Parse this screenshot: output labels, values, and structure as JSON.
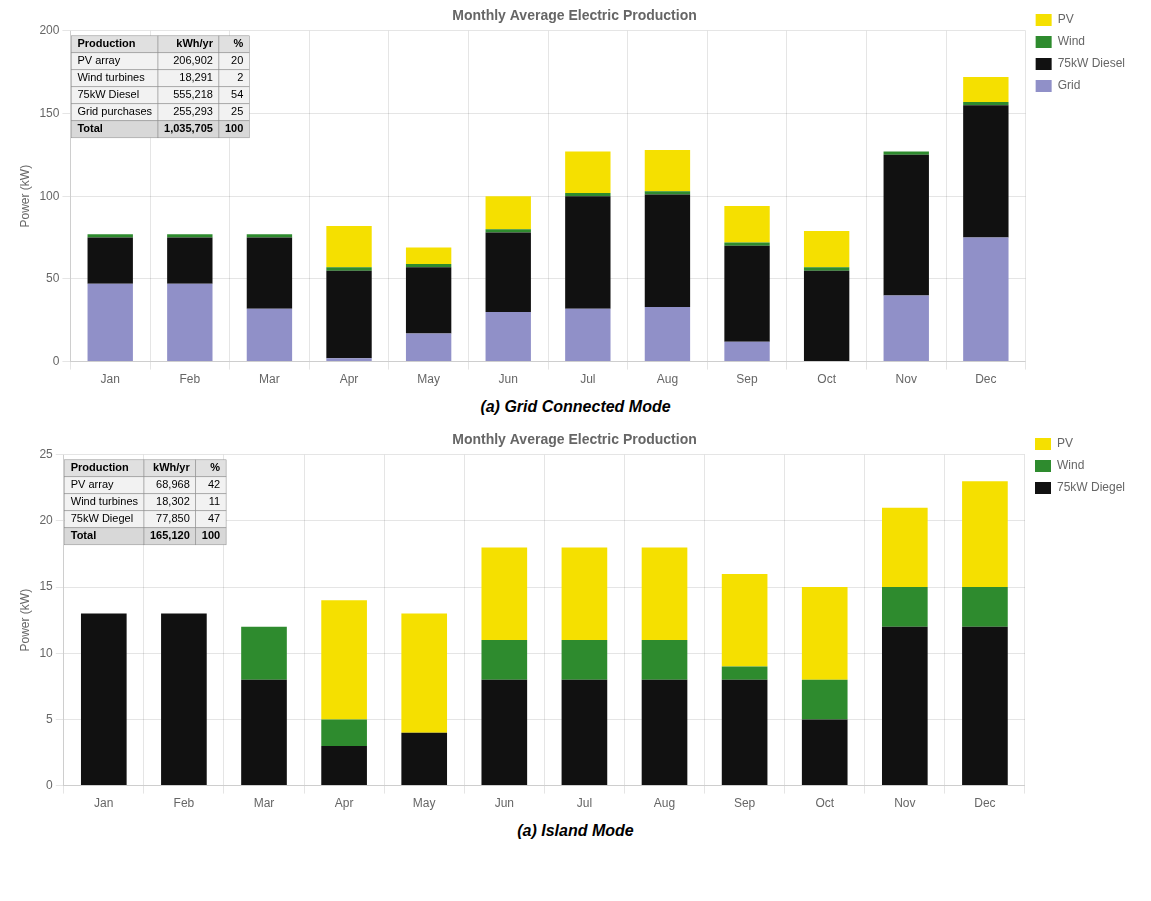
{
  "chart_data": [
    {
      "type": "bar",
      "stacked": true,
      "title": "Monthly Average Electric Production",
      "ylabel": "Power (kW)",
      "caption": "(a)  Grid Connected Mode",
      "categories": [
        "Jan",
        "Feb",
        "Mar",
        "Apr",
        "May",
        "Jun",
        "Jul",
        "Aug",
        "Sep",
        "Oct",
        "Nov",
        "Dec"
      ],
      "series": [
        {
          "name": "Grid",
          "color": "#9090c8",
          "values": [
            47,
            47,
            32,
            2,
            17,
            30,
            32,
            33,
            12,
            0,
            40,
            75
          ]
        },
        {
          "name": "75kW Diesel",
          "color": "#111111",
          "values": [
            28,
            28,
            43,
            53,
            40,
            48,
            68,
            68,
            58,
            55,
            85,
            80
          ]
        },
        {
          "name": "Wind",
          "color": "#2e8b2e",
          "values": [
            2,
            2,
            2,
            2,
            2,
            2,
            2,
            2,
            2,
            2,
            2,
            2
          ]
        },
        {
          "name": "PV",
          "color": "#f5e000",
          "values": [
            0,
            0,
            0,
            25,
            10,
            20,
            25,
            25,
            22,
            22,
            0,
            15
          ]
        }
      ],
      "ylim": [
        0,
        200
      ],
      "yticks": [
        0,
        50,
        100,
        150,
        200
      ],
      "grid": true,
      "legend": "upper right",
      "table": {
        "headers": [
          "Production",
          "kWh/yr",
          "%"
        ],
        "rows": [
          [
            "PV array",
            "206,902",
            "20"
          ],
          [
            "Wind turbines",
            "18,291",
            "2"
          ],
          [
            "75kW Diesel",
            "555,218",
            "54"
          ],
          [
            "Grid purchases",
            "255,293",
            "25"
          ],
          [
            "Total",
            "1,035,705",
            "100"
          ]
        ]
      }
    },
    {
      "type": "bar",
      "stacked": true,
      "title": "Monthly Average Electric Production",
      "ylabel": "Power (kW)",
      "caption": "(a)  Island Mode",
      "categories": [
        "Jan",
        "Feb",
        "Mar",
        "Apr",
        "May",
        "Jun",
        "Jul",
        "Aug",
        "Sep",
        "Oct",
        "Nov",
        "Dec"
      ],
      "series": [
        {
          "name": "75kW Diegel",
          "color": "#111111",
          "values": [
            13,
            13,
            8,
            3,
            4,
            8,
            8,
            8,
            8,
            5,
            12,
            12
          ]
        },
        {
          "name": "Wind",
          "color": "#2e8b2e",
          "values": [
            0,
            0,
            4,
            2,
            0,
            3,
            3,
            3,
            1,
            3,
            3,
            3
          ]
        },
        {
          "name": "PV",
          "color": "#f5e000",
          "values": [
            0,
            0,
            0,
            9,
            9,
            7,
            7,
            7,
            7,
            7,
            6,
            8
          ]
        }
      ],
      "ylim": [
        0,
        25
      ],
      "yticks": [
        0,
        5,
        10,
        15,
        20,
        25
      ],
      "grid": true,
      "legend": "upper right",
      "table": {
        "headers": [
          "Production",
          "kWh/yr",
          "%"
        ],
        "rows": [
          [
            "PV array",
            "68,968",
            "42"
          ],
          [
            "Wind turbines",
            "18,302",
            "11"
          ],
          [
            "75kW Diegel",
            "77,850",
            "47"
          ],
          [
            "Total",
            "165,120",
            "100"
          ]
        ]
      }
    }
  ]
}
